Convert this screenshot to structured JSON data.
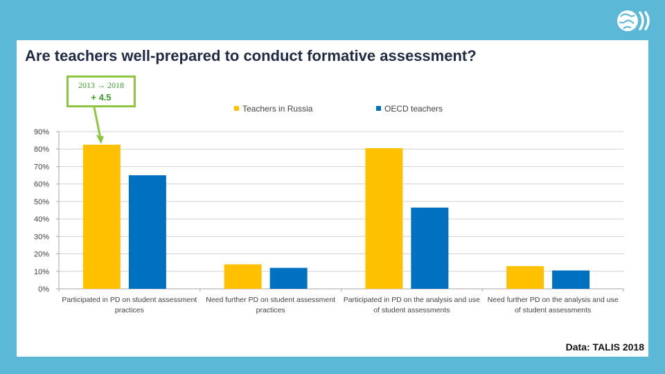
{
  "slide": {
    "title": "Are teachers well-prepared to conduct formative assessment?",
    "callout_line1": "2013 → 2018",
    "callout_line2": "+ 4.5",
    "source": "Data: TALIS 2018",
    "logo_icon": "globe-icon"
  },
  "colors": {
    "background": "#5bb8d6",
    "russia": "#ffc000",
    "oecd": "#0070c0",
    "callout": "#8dc63f"
  },
  "chart_data": {
    "type": "bar",
    "title": "",
    "xlabel": "",
    "ylabel": "",
    "categories": [
      "Participated in PD on student assessment practices",
      "Need further PD on student assessment practices",
      "Participated in PD on the analysis and use of student assessments",
      "Need further PD on the analysis and use of student assessments"
    ],
    "category_lines": [
      [
        "Participated in PD on student assessment",
        "practices"
      ],
      [
        "Need further PD on student assessment",
        "practices"
      ],
      [
        "Participated in PD on the analysis and use",
        "of student assessments"
      ],
      [
        "Need further PD on the analysis and use",
        "of student assessments"
      ]
    ],
    "series": [
      {
        "name": "Teachers in Russia",
        "values": [
          82.5,
          14,
          80.5,
          13
        ]
      },
      {
        "name": "OECD teachers",
        "values": [
          65,
          12,
          46.5,
          10.5
        ]
      }
    ],
    "ylim": [
      0,
      90
    ],
    "yticks": [
      0,
      10,
      20,
      30,
      40,
      50,
      60,
      70,
      80,
      90
    ],
    "ytick_labels": [
      "0%",
      "10%",
      "20%",
      "30%",
      "40%",
      "50%",
      "60%",
      "70%",
      "80%",
      "90%"
    ],
    "grid": true,
    "legend": "top"
  }
}
